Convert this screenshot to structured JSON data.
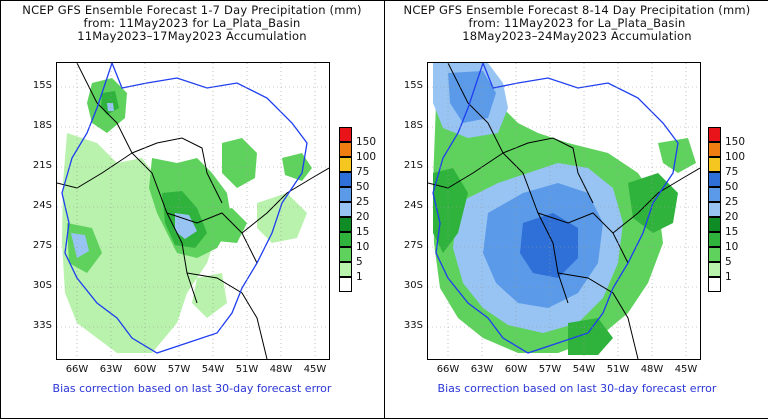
{
  "panels": [
    {
      "title_line1": "NCEP GFS Ensemble Forecast 1-7 Day Precipitation (mm)",
      "title_line2": "from: 11May2023   for La_Plata_Basin",
      "title_line3": "11May2023–17May2023 Accumulation",
      "footer": "Bias correction based on last 30-day forecast error"
    },
    {
      "title_line1": "NCEP GFS Ensemble Forecast 8-14 Day Precipitation (mm)",
      "title_line2": "from: 11May2023   for La_Plata_Basin",
      "title_line3": "18May2023–24May2023 Accumulation",
      "footer": "Bias correction based on last 30-day forecast error"
    }
  ],
  "lat_labels": [
    "15S",
    "18S",
    "21S",
    "24S",
    "27S",
    "30S",
    "33S"
  ],
  "lon_labels": [
    "66W",
    "63W",
    "60W",
    "57W",
    "54W",
    "51W",
    "48W",
    "45W"
  ],
  "legend": {
    "levels": [
      "150",
      "100",
      "75",
      "50",
      "25",
      "20",
      "15",
      "10",
      "5",
      "1"
    ],
    "colors": [
      "#e8141a",
      "#f07d12",
      "#f6c620",
      "#2e6fd8",
      "#5a9ae8",
      "#98c4f4",
      "#0f8c26",
      "#2fb33c",
      "#5fd25e",
      "#b8f2ac",
      "#ffffff"
    ]
  },
  "colors": {
    "basin_outline": "#1e3ef0",
    "borders": "#000000",
    "footer_text": "#2a35d6"
  }
}
